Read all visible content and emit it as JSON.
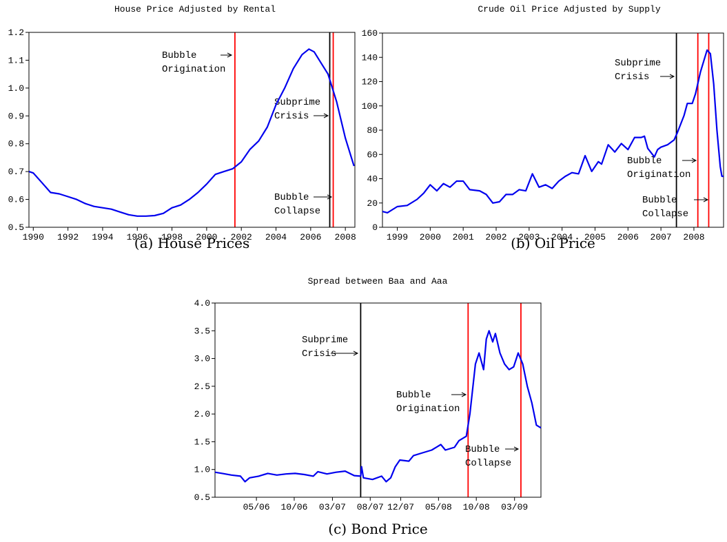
{
  "chart_data": [
    {
      "type": "line",
      "title": "House Price Adjusted by Rental",
      "caption": "(a) House Prices",
      "color": "#0000ee",
      "x": [
        1989.75,
        1990.0,
        1990.5,
        1991.0,
        1991.5,
        1992.0,
        1992.5,
        1993.0,
        1993.5,
        1994.0,
        1994.5,
        1995.0,
        1995.5,
        1996.0,
        1996.5,
        1997.0,
        1997.5,
        1998.0,
        1998.5,
        1999.0,
        1999.5,
        2000.0,
        2000.5,
        2001.0,
        2001.5,
        2002.0,
        2002.5,
        2003.0,
        2003.5,
        2004.0,
        2004.5,
        2005.0,
        2005.5,
        2005.9,
        2006.2,
        2006.5,
        2007.0,
        2007.5,
        2008.0,
        2008.5
      ],
      "values": [
        0.7,
        0.695,
        0.66,
        0.625,
        0.62,
        0.61,
        0.6,
        0.585,
        0.575,
        0.57,
        0.565,
        0.555,
        0.545,
        0.54,
        0.54,
        0.542,
        0.55,
        0.57,
        0.58,
        0.6,
        0.625,
        0.655,
        0.69,
        0.7,
        0.71,
        0.735,
        0.78,
        0.81,
        0.86,
        0.94,
        1.0,
        1.07,
        1.12,
        1.14,
        1.13,
        1.1,
        1.05,
        0.95,
        0.82,
        0.72
      ],
      "xlim": [
        1989.75,
        2008.55
      ],
      "xticks": [
        1990,
        1992,
        1994,
        1996,
        1998,
        2000,
        2002,
        2004,
        2006,
        2008
      ],
      "ylim": [
        0.5,
        1.2
      ],
      "yticks": [
        0.5,
        0.6,
        0.7,
        0.8,
        0.9,
        {
          "value": 1,
          "label": "1.0"
        },
        1.1,
        1.2
      ],
      "markers": [
        {
          "label": "Bubble Origination",
          "x": 2001.63,
          "color": "#ff0000"
        },
        {
          "label": "Subprime Crisis",
          "x": 2007.1,
          "color": "#000000"
        },
        {
          "label": "Bubble Collapse",
          "x": 2007.3,
          "color": "#ff0000"
        }
      ]
    },
    {
      "type": "line",
      "title": "Crude Oil Price Adjusted by Supply",
      "caption": "(b) Oil Price",
      "color": "#0000ee",
      "x": [
        1998.55,
        1998.7,
        1999.0,
        1999.3,
        1999.6,
        1999.8,
        2000.0,
        2000.2,
        2000.4,
        2000.6,
        2000.8,
        2001.0,
        2001.2,
        2001.5,
        2001.7,
        2001.9,
        2002.1,
        2002.3,
        2002.5,
        2002.7,
        2002.9,
        2003.1,
        2003.3,
        2003.5,
        2003.7,
        2003.9,
        2004.1,
        2004.3,
        2004.5,
        2004.7,
        2004.9,
        2005.1,
        2005.2,
        2005.4,
        2005.6,
        2005.8,
        2006.0,
        2006.2,
        2006.4,
        2006.5,
        2006.6,
        2006.8,
        2006.9,
        2007.0,
        2007.2,
        2007.4,
        2007.5,
        2007.7,
        2007.8,
        2007.95,
        2008.05,
        2008.2,
        2008.4,
        2008.5,
        2008.6,
        2008.7,
        2008.8,
        2008.85,
        2008.9
      ],
      "values": [
        13,
        12,
        17,
        18,
        23,
        28,
        35,
        30,
        36,
        33,
        38,
        38,
        31,
        30,
        27,
        20,
        21,
        27,
        27,
        31,
        30,
        44,
        33,
        35,
        32,
        38,
        42,
        45,
        44,
        59,
        46,
        54,
        52,
        68,
        62,
        69,
        64,
        74,
        74,
        75,
        65,
        58,
        64,
        66,
        68,
        72,
        78,
        92,
        102,
        102,
        110,
        128,
        146,
        143,
        118,
        80,
        50,
        42,
        42
      ],
      "xlim": [
        1998.55,
        2008.9
      ],
      "xticks": [
        1999,
        2000,
        2001,
        2002,
        2003,
        2004,
        2005,
        2006,
        2007,
        2008
      ],
      "ylim": [
        0,
        160
      ],
      "yticks": [
        0,
        20,
        40,
        60,
        80,
        100,
        120,
        140,
        160
      ],
      "markers": [
        {
          "label": "Subprime Crisis",
          "x": 2007.47,
          "color": "#000000"
        },
        {
          "label": "Bubble Origination",
          "x": 2008.12,
          "color": "#ff0000"
        },
        {
          "label": "Bubble Collapse",
          "x": 2008.45,
          "color": "#ff0000"
        }
      ]
    },
    {
      "type": "line",
      "title": "Spread between Baa and Aaa",
      "caption": "(c) Bond Price",
      "color": "#0000ee",
      "x": [
        2005.92,
        2006.0,
        2006.1,
        2006.2,
        2006.25,
        2006.3,
        2006.4,
        2006.5,
        2006.6,
        2006.7,
        2006.8,
        2006.9,
        2007.0,
        2007.05,
        2007.15,
        2007.25,
        2007.35,
        2007.45,
        2007.52,
        2007.53,
        2007.55,
        2007.65,
        2007.75,
        2007.8,
        2007.85,
        2007.9,
        2007.95,
        2008.05,
        2008.1,
        2008.2,
        2008.3,
        2008.4,
        2008.45,
        2008.55,
        2008.6,
        2008.68,
        2008.72,
        2008.78,
        2008.82,
        2008.87,
        2008.9,
        2008.93,
        2008.97,
        2009.0,
        2009.05,
        2009.1,
        2009.15,
        2009.2,
        2009.25,
        2009.3,
        2009.35,
        2009.4,
        2009.45,
        2009.5
      ],
      "values": [
        0.95,
        0.93,
        0.9,
        0.88,
        0.78,
        0.85,
        0.88,
        0.93,
        0.9,
        0.92,
        0.93,
        0.91,
        0.88,
        0.96,
        0.92,
        0.95,
        0.97,
        0.89,
        0.88,
        1.05,
        0.85,
        0.82,
        0.88,
        0.78,
        0.85,
        1.05,
        1.17,
        1.15,
        1.25,
        1.3,
        1.35,
        1.45,
        1.35,
        1.4,
        1.52,
        1.6,
        2.0,
        2.9,
        3.1,
        2.8,
        3.35,
        3.5,
        3.3,
        3.45,
        3.1,
        2.9,
        2.8,
        2.85,
        3.1,
        2.9,
        2.5,
        2.2,
        1.8,
        1.75
      ],
      "xlim": [
        2005.92,
        2009.5
      ],
      "xticks": [
        {
          "value": 2006.375,
          "label": "05/06"
        },
        {
          "value": 2006.79,
          "label": "10/06"
        },
        {
          "value": 2007.21,
          "label": "03/07"
        },
        {
          "value": 2007.625,
          "label": "08/07"
        },
        {
          "value": 2007.96,
          "label": "12/07"
        },
        {
          "value": 2008.375,
          "label": "05/08"
        },
        {
          "value": 2008.79,
          "label": "10/08"
        },
        {
          "value": 2009.21,
          "label": "03/09"
        }
      ],
      "ylim": [
        0.5,
        4.0
      ],
      "yticks": [
        0.5,
        {
          "value": 1,
          "label": "1.0"
        },
        1.5,
        {
          "value": 2,
          "label": "2.0"
        },
        2.5,
        {
          "value": 3,
          "label": "3.0"
        },
        3.5,
        {
          "value": 4,
          "label": "4.0"
        }
      ],
      "markers": [
        {
          "label": "Subprime Crisis",
          "x": 2007.52,
          "color": "#000000"
        },
        {
          "label": "Bubble Origination",
          "x": 2008.7,
          "color": "#ff0000"
        },
        {
          "label": "Bubble Collapse",
          "x": 2009.28,
          "color": "#ff0000"
        }
      ]
    }
  ]
}
